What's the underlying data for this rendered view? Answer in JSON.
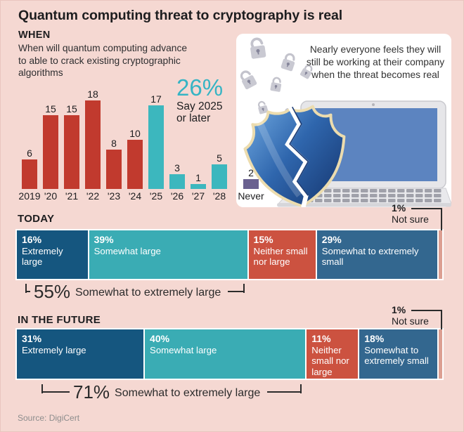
{
  "title": "Quantum computing threat to cryptography is real",
  "illustration": {
    "caption": "Nearly everyone feels they will still be working at their company when the threat becomes real"
  },
  "source": "Source: DigiCert",
  "colors": {
    "background": "#f5d8d2",
    "accent_teal": "#35b4c4",
    "panel_white": "#ffffff",
    "chart_red": "#c13a2e",
    "chart_teal": "#3cb7be",
    "never_purple": "#6a6190",
    "seg_dark_blue": "#15567f",
    "seg_teal": "#3aacb4",
    "seg_red": "#cc5240",
    "seg_steel_blue": "#33678f",
    "seg_not_sure_salmon": "#dc9f92"
  },
  "chart_data": [
    {
      "type": "bar",
      "section": "WHEN",
      "question": "When will quantum computing advance to able to crack existing cryptographic algorithms",
      "categories": [
        "2019",
        "'20",
        "'21",
        "'22",
        "'23",
        "'24",
        "'25",
        "'26",
        "'27",
        "'28",
        "Never"
      ],
      "values": [
        6,
        15,
        15,
        18,
        8,
        10,
        17,
        3,
        1,
        5,
        2
      ],
      "bar_colors": [
        "#c13a2e",
        "#c13a2e",
        "#c13a2e",
        "#c13a2e",
        "#c13a2e",
        "#c13a2e",
        "#3cb7be",
        "#3cb7be",
        "#3cb7be",
        "#3cb7be",
        "#6a6190"
      ],
      "ylim": [
        0,
        18
      ],
      "grid": false,
      "annotation": {
        "value": "26%",
        "line1": "Say 2025",
        "line2": "or later"
      }
    },
    {
      "type": "stacked-bar-horizontal",
      "section": "TODAY",
      "segments": [
        {
          "value": "16%",
          "label": "Extremely large",
          "pct": 16,
          "color": "#15567f"
        },
        {
          "value": "39%",
          "label": "Somewhat large",
          "pct": 39,
          "color": "#3aacb4"
        },
        {
          "value": "15%",
          "label": "Neither small nor large",
          "pct": 15,
          "color": "#cc5240"
        },
        {
          "value": "29%",
          "label": "Somewhat to extremely small",
          "pct": 29,
          "color": "#33678f"
        },
        {
          "value": "",
          "label": "",
          "pct": 1,
          "color": "#dc9f92"
        }
      ],
      "not_sure": {
        "value": "1%",
        "label": "Not sure"
      },
      "bracket": {
        "value": "55%",
        "label": "Somewhat to extremely large"
      }
    },
    {
      "type": "stacked-bar-horizontal",
      "section": "IN THE FUTURE",
      "segments": [
        {
          "value": "31%",
          "label": "Extremely large",
          "pct": 31,
          "color": "#15567f"
        },
        {
          "value": "40%",
          "label": "Somewhat large",
          "pct": 40,
          "color": "#3aacb4"
        },
        {
          "value": "11%",
          "label": "Neither small nor large",
          "pct": 11,
          "color": "#cc5240"
        },
        {
          "value": "18%",
          "label": "Somewhat to extremely small",
          "pct": 18,
          "color": "#33678f"
        },
        {
          "value": "",
          "label": "",
          "pct": 1,
          "color": "#dc9f92"
        }
      ],
      "not_sure": {
        "value": "1%",
        "label": "Not sure"
      },
      "bracket": {
        "value": "71%",
        "label": "Somewhat to extremely large"
      }
    }
  ]
}
